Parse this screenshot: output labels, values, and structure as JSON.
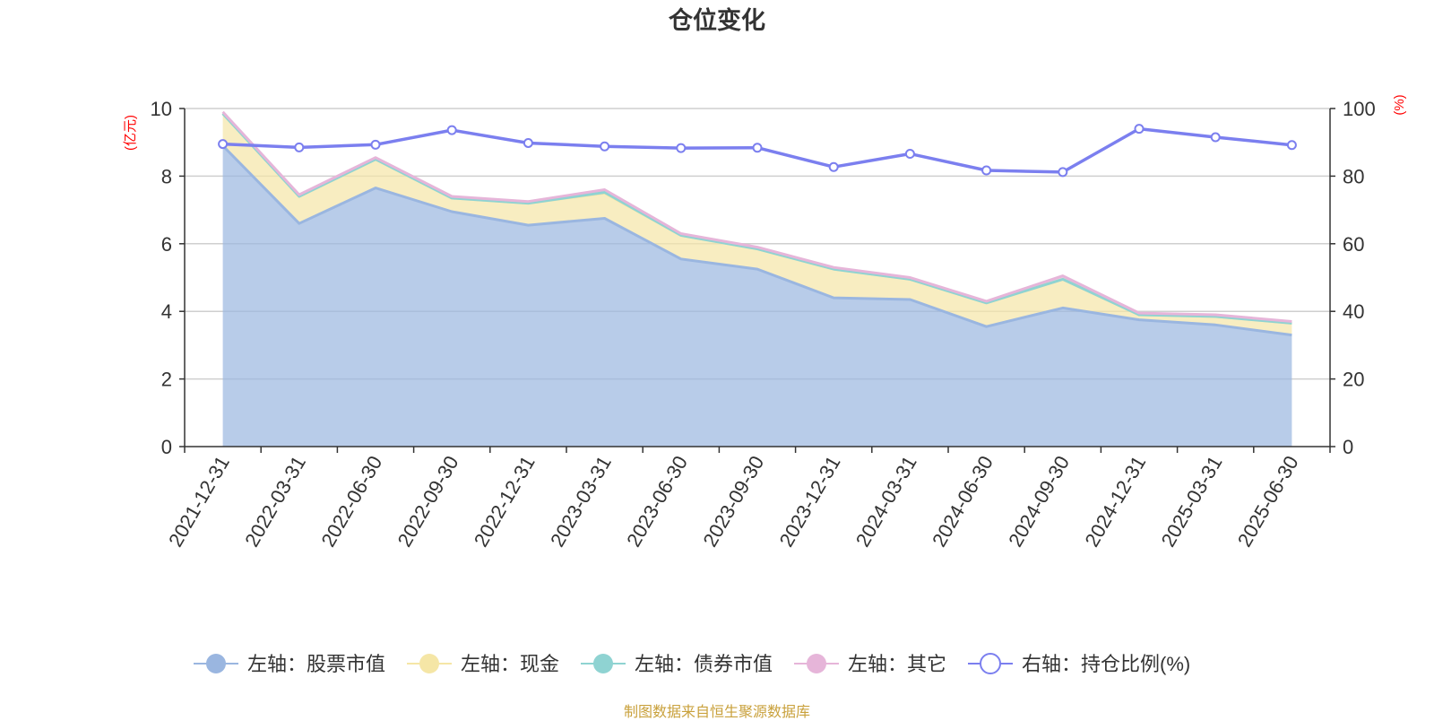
{
  "chart_data": {
    "type": "area",
    "title": "仓位变化",
    "left_axis": {
      "label": "(亿元)",
      "ylim": [
        0,
        10
      ],
      "ticks": [
        "0",
        "2",
        "4",
        "6",
        "8",
        "10"
      ]
    },
    "right_axis": {
      "label": "(%)",
      "ylim": [
        0,
        100
      ],
      "ticks": [
        "0",
        "20",
        "40",
        "60",
        "80",
        "100"
      ]
    },
    "categories": [
      "2021-12-31",
      "2022-03-31",
      "2022-06-30",
      "2022-09-30",
      "2022-12-31",
      "2023-03-31",
      "2023-06-30",
      "2023-09-30",
      "2023-12-31",
      "2024-03-31",
      "2024-06-30",
      "2024-09-30",
      "2024-12-31",
      "2025-03-31",
      "2025-06-30"
    ],
    "stacked": true,
    "grid": true,
    "legend_position": "bottom",
    "series": [
      {
        "name": "左轴：股票市值",
        "axis": "left",
        "color": "#9ab6e0",
        "values": [
          8.9,
          6.6,
          7.65,
          6.95,
          6.55,
          6.75,
          5.55,
          5.25,
          4.4,
          4.35,
          3.55,
          4.1,
          3.75,
          3.6,
          3.3
        ]
      },
      {
        "name": "左轴：现金",
        "axis": "left",
        "color": "#f5e6a6",
        "values": [
          0.95,
          0.8,
          0.85,
          0.4,
          0.65,
          0.75,
          0.7,
          0.6,
          0.85,
          0.6,
          0.7,
          0.85,
          0.15,
          0.25,
          0.35
        ]
      },
      {
        "name": "左轴：债券市值",
        "axis": "left",
        "color": "#8fd3d2",
        "values": [
          0,
          0,
          0,
          0,
          0,
          0.02,
          0,
          0,
          0,
          0,
          0,
          0,
          0,
          0,
          0
        ]
      },
      {
        "name": "左轴：其它",
        "axis": "left",
        "color": "#e6b5d9",
        "values": [
          0.05,
          0.05,
          0.05,
          0.05,
          0.05,
          0.08,
          0.05,
          0.05,
          0.05,
          0.05,
          0.05,
          0.1,
          0.05,
          0.05,
          0.05
        ]
      },
      {
        "name": "右轴：持仓比例(%)",
        "axis": "right",
        "color": "#7b7fef",
        "values": [
          89.5,
          88.5,
          89.3,
          93.6,
          89.8,
          88.8,
          88.3,
          88.4,
          82.7,
          86.6,
          81.7,
          81.2,
          94.0,
          91.5,
          89.2
        ]
      }
    ]
  },
  "footer": {
    "source": "制图数据来自恒生聚源数据库"
  }
}
